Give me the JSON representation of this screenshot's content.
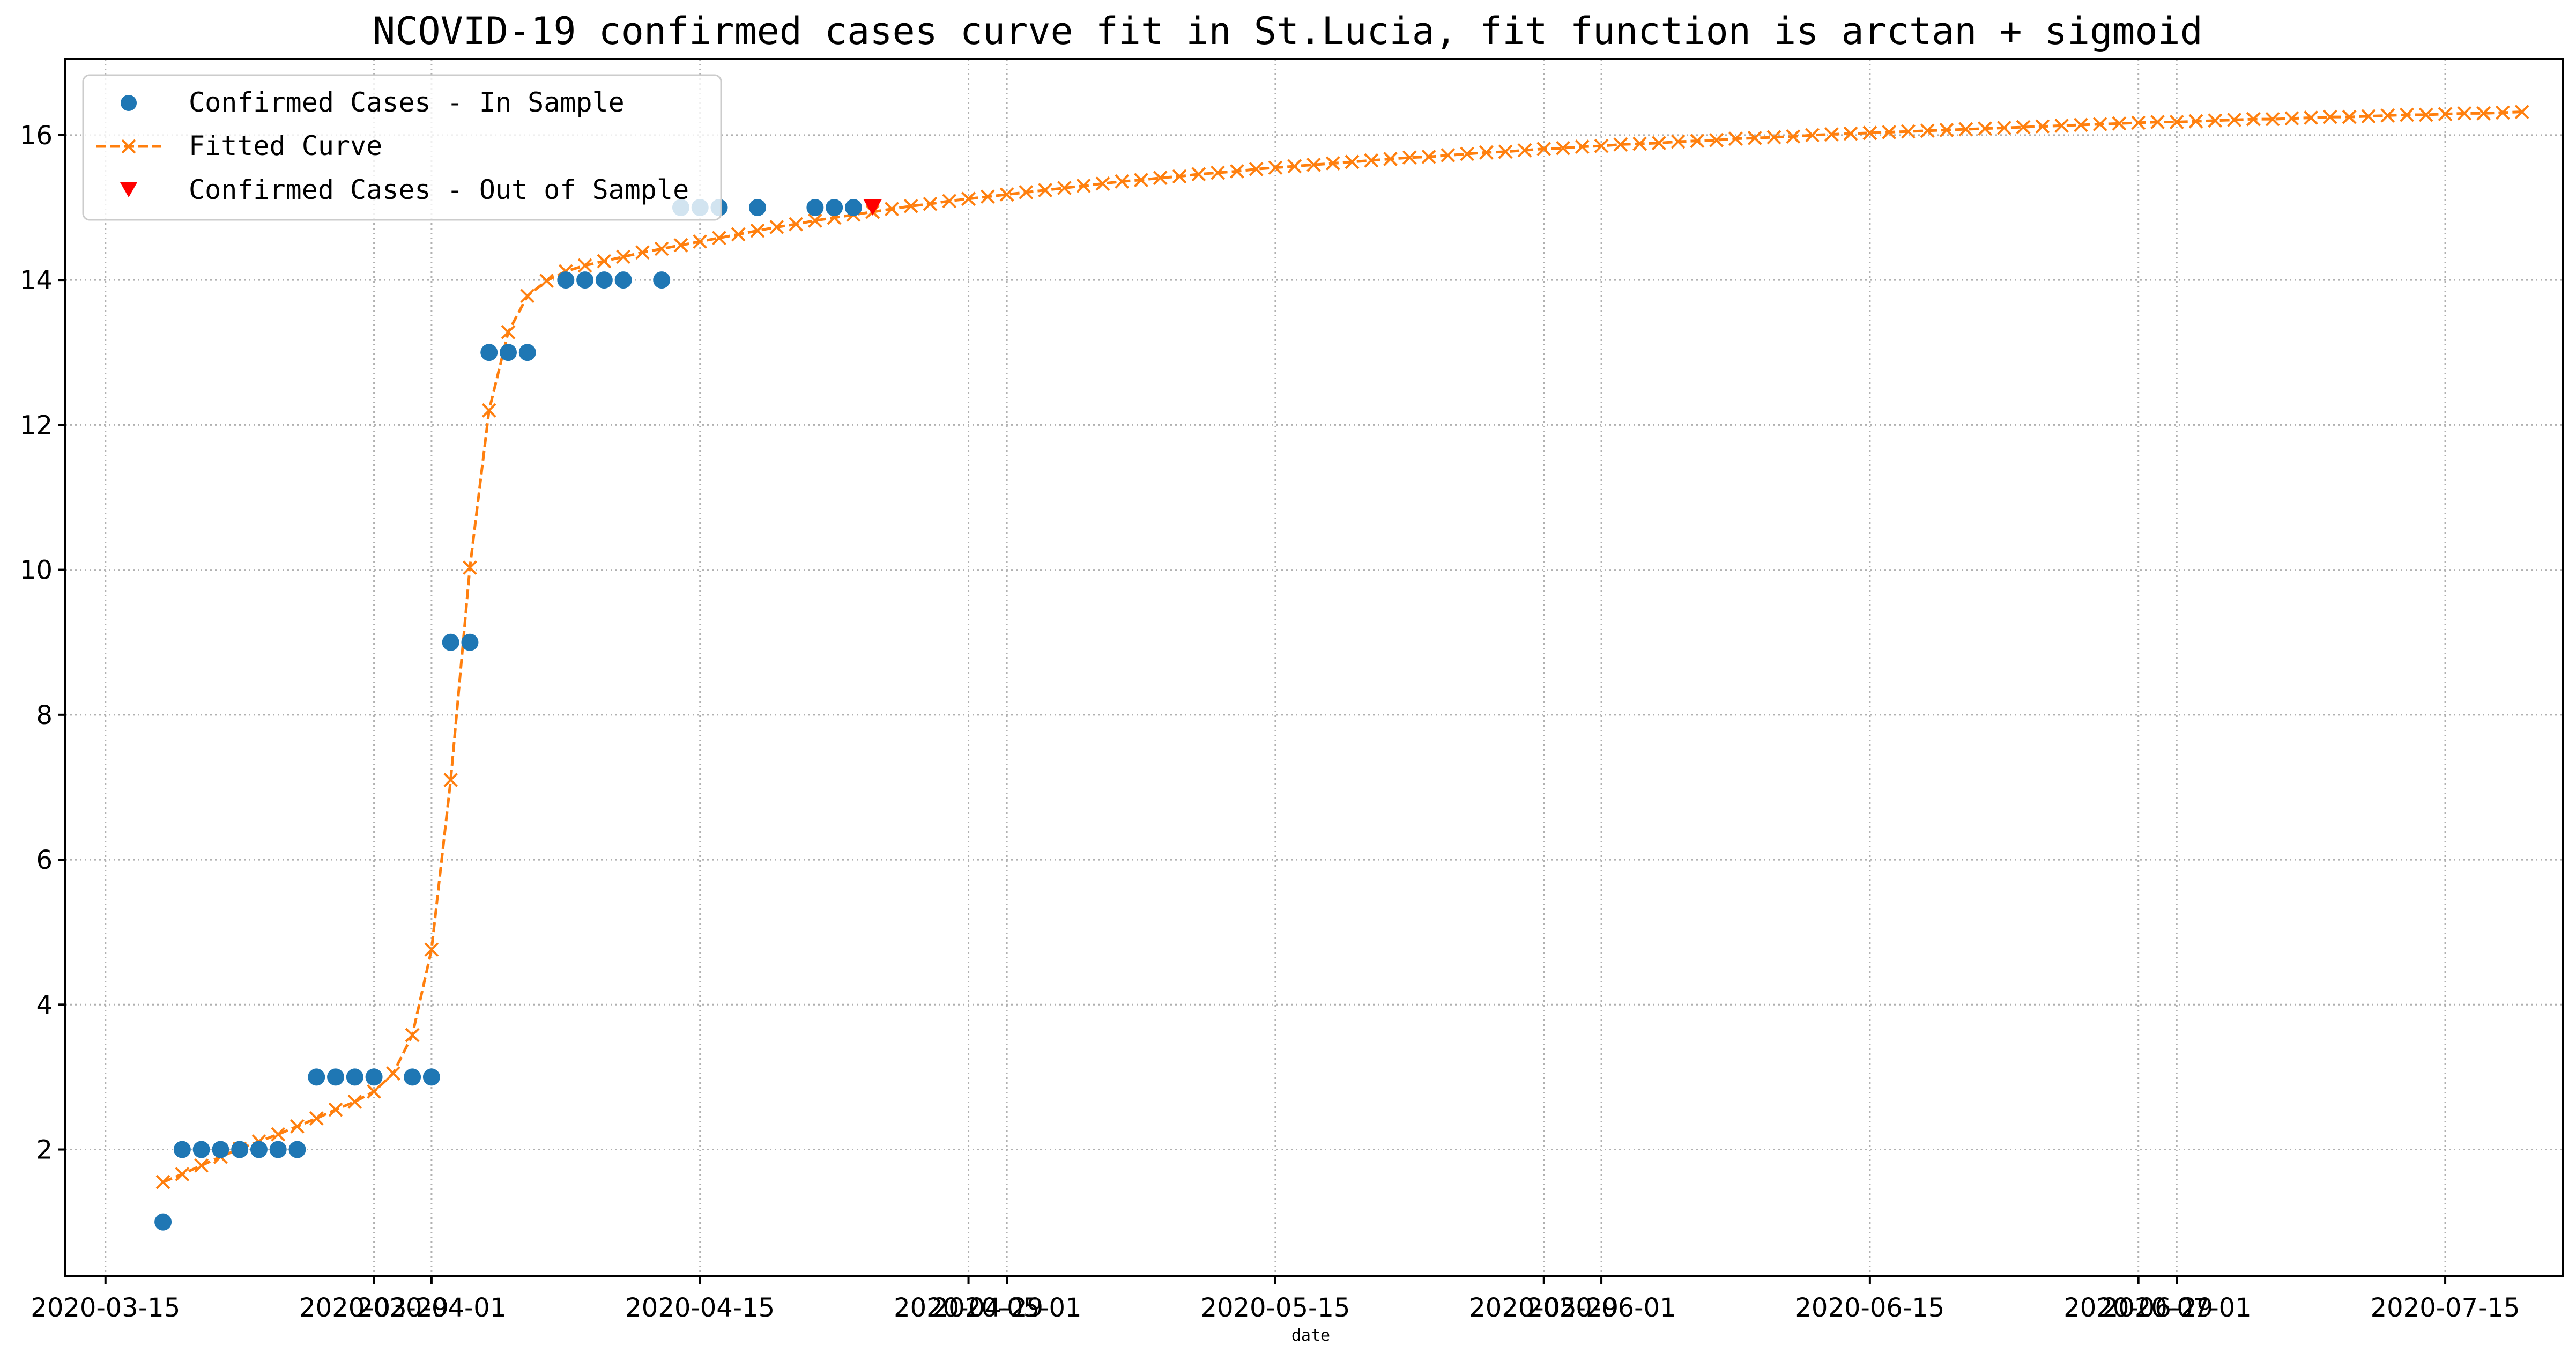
{
  "chart_data": {
    "type": "scatter",
    "title": "NCOVID-19 confirmed cases curve fit in St.Lucia, fit function is arctan + sigmoid",
    "xlabel": "date",
    "ylabel": "",
    "x_start": "2020-03-13",
    "x_end": "2020-07-18",
    "xlim_days_from_x_start": [
      -0.09,
      130.12
    ],
    "ylim": [
      0.25,
      17.05
    ],
    "grid": true,
    "legend_position": "upper-left",
    "x_ticks": [
      {
        "day": 2,
        "label": "2020-03-15"
      },
      {
        "day": 16,
        "label": "2020-03-29"
      },
      {
        "day": 19,
        "label": "2020-04-01"
      },
      {
        "day": 33,
        "label": "2020-04-15"
      },
      {
        "day": 47,
        "label": "2020-04-29"
      },
      {
        "day": 49,
        "label": "2020-05-01"
      },
      {
        "day": 63,
        "label": "2020-05-15"
      },
      {
        "day": 77,
        "label": "2020-05-29"
      },
      {
        "day": 80,
        "label": "2020-06-01"
      },
      {
        "day": 94,
        "label": "2020-06-15"
      },
      {
        "day": 108,
        "label": "2020-06-29"
      },
      {
        "day": 110,
        "label": "2020-07-01"
      },
      {
        "day": 124,
        "label": "2020-07-15"
      }
    ],
    "y_ticks": [
      2,
      4,
      6,
      8,
      10,
      12,
      14,
      16
    ],
    "series": [
      {
        "name": "Confirmed Cases - In Sample",
        "color": "#1f77b4",
        "marker": "circle",
        "points": [
          [
            5,
            1
          ],
          [
            6,
            2
          ],
          [
            7,
            2
          ],
          [
            8,
            2
          ],
          [
            9,
            2
          ],
          [
            10,
            2
          ],
          [
            11,
            2
          ],
          [
            12,
            2
          ],
          [
            13,
            3
          ],
          [
            14,
            3
          ],
          [
            15,
            3
          ],
          [
            16,
            3
          ],
          [
            18,
            3
          ],
          [
            19,
            3
          ],
          [
            20,
            9
          ],
          [
            21,
            9
          ],
          [
            22,
            13
          ],
          [
            23,
            13
          ],
          [
            24,
            13
          ],
          [
            26,
            14
          ],
          [
            27,
            14
          ],
          [
            28,
            14
          ],
          [
            29,
            14
          ],
          [
            31,
            14
          ],
          [
            32,
            15
          ],
          [
            33,
            15
          ],
          [
            34,
            15
          ],
          [
            36,
            15
          ],
          [
            39,
            15
          ],
          [
            40,
            15
          ],
          [
            41,
            15
          ]
        ]
      },
      {
        "name": "Fitted Curve",
        "color": "#ff7f0e",
        "marker": "x",
        "line": "dashed",
        "x_from": 5,
        "x_to": 128,
        "values": [
          1.55,
          1.66,
          1.78,
          1.9,
          2.01,
          2.11,
          2.21,
          2.32,
          2.43,
          2.55,
          2.66,
          2.8,
          3.05,
          3.58,
          4.76,
          7.1,
          10.03,
          12.2,
          13.28,
          13.78,
          13.99,
          14.12,
          14.2,
          14.26,
          14.32,
          14.38,
          14.43,
          14.48,
          14.53,
          14.58,
          14.63,
          14.68,
          14.73,
          14.77,
          14.82,
          14.86,
          14.9,
          14.94,
          14.98,
          15.02,
          15.05,
          15.09,
          15.12,
          15.15,
          15.18,
          15.21,
          15.24,
          15.27,
          15.3,
          15.33,
          15.36,
          15.38,
          15.41,
          15.43,
          15.46,
          15.48,
          15.5,
          15.53,
          15.55,
          15.57,
          15.59,
          15.61,
          15.63,
          15.65,
          15.67,
          15.69,
          15.7,
          15.72,
          15.74,
          15.76,
          15.77,
          15.79,
          15.81,
          15.82,
          15.84,
          15.85,
          15.87,
          15.88,
          15.89,
          15.91,
          15.92,
          15.93,
          15.95,
          15.96,
          15.97,
          15.98,
          16.0,
          16.01,
          16.02,
          16.03,
          16.04,
          16.05,
          16.06,
          16.07,
          16.08,
          16.09,
          16.1,
          16.11,
          16.12,
          16.13,
          16.14,
          16.15,
          16.16,
          16.17,
          16.18,
          16.18,
          16.19,
          16.2,
          16.21,
          16.22,
          16.22,
          16.23,
          16.24,
          16.25,
          16.25,
          16.26,
          16.27,
          16.28,
          16.28,
          16.29,
          16.3,
          16.3,
          16.31,
          16.32
        ]
      },
      {
        "name": "Confirmed Cases - Out of Sample",
        "color": "#ff0000",
        "marker": "triangle-down",
        "points": [
          [
            42,
            15
          ]
        ]
      }
    ]
  }
}
